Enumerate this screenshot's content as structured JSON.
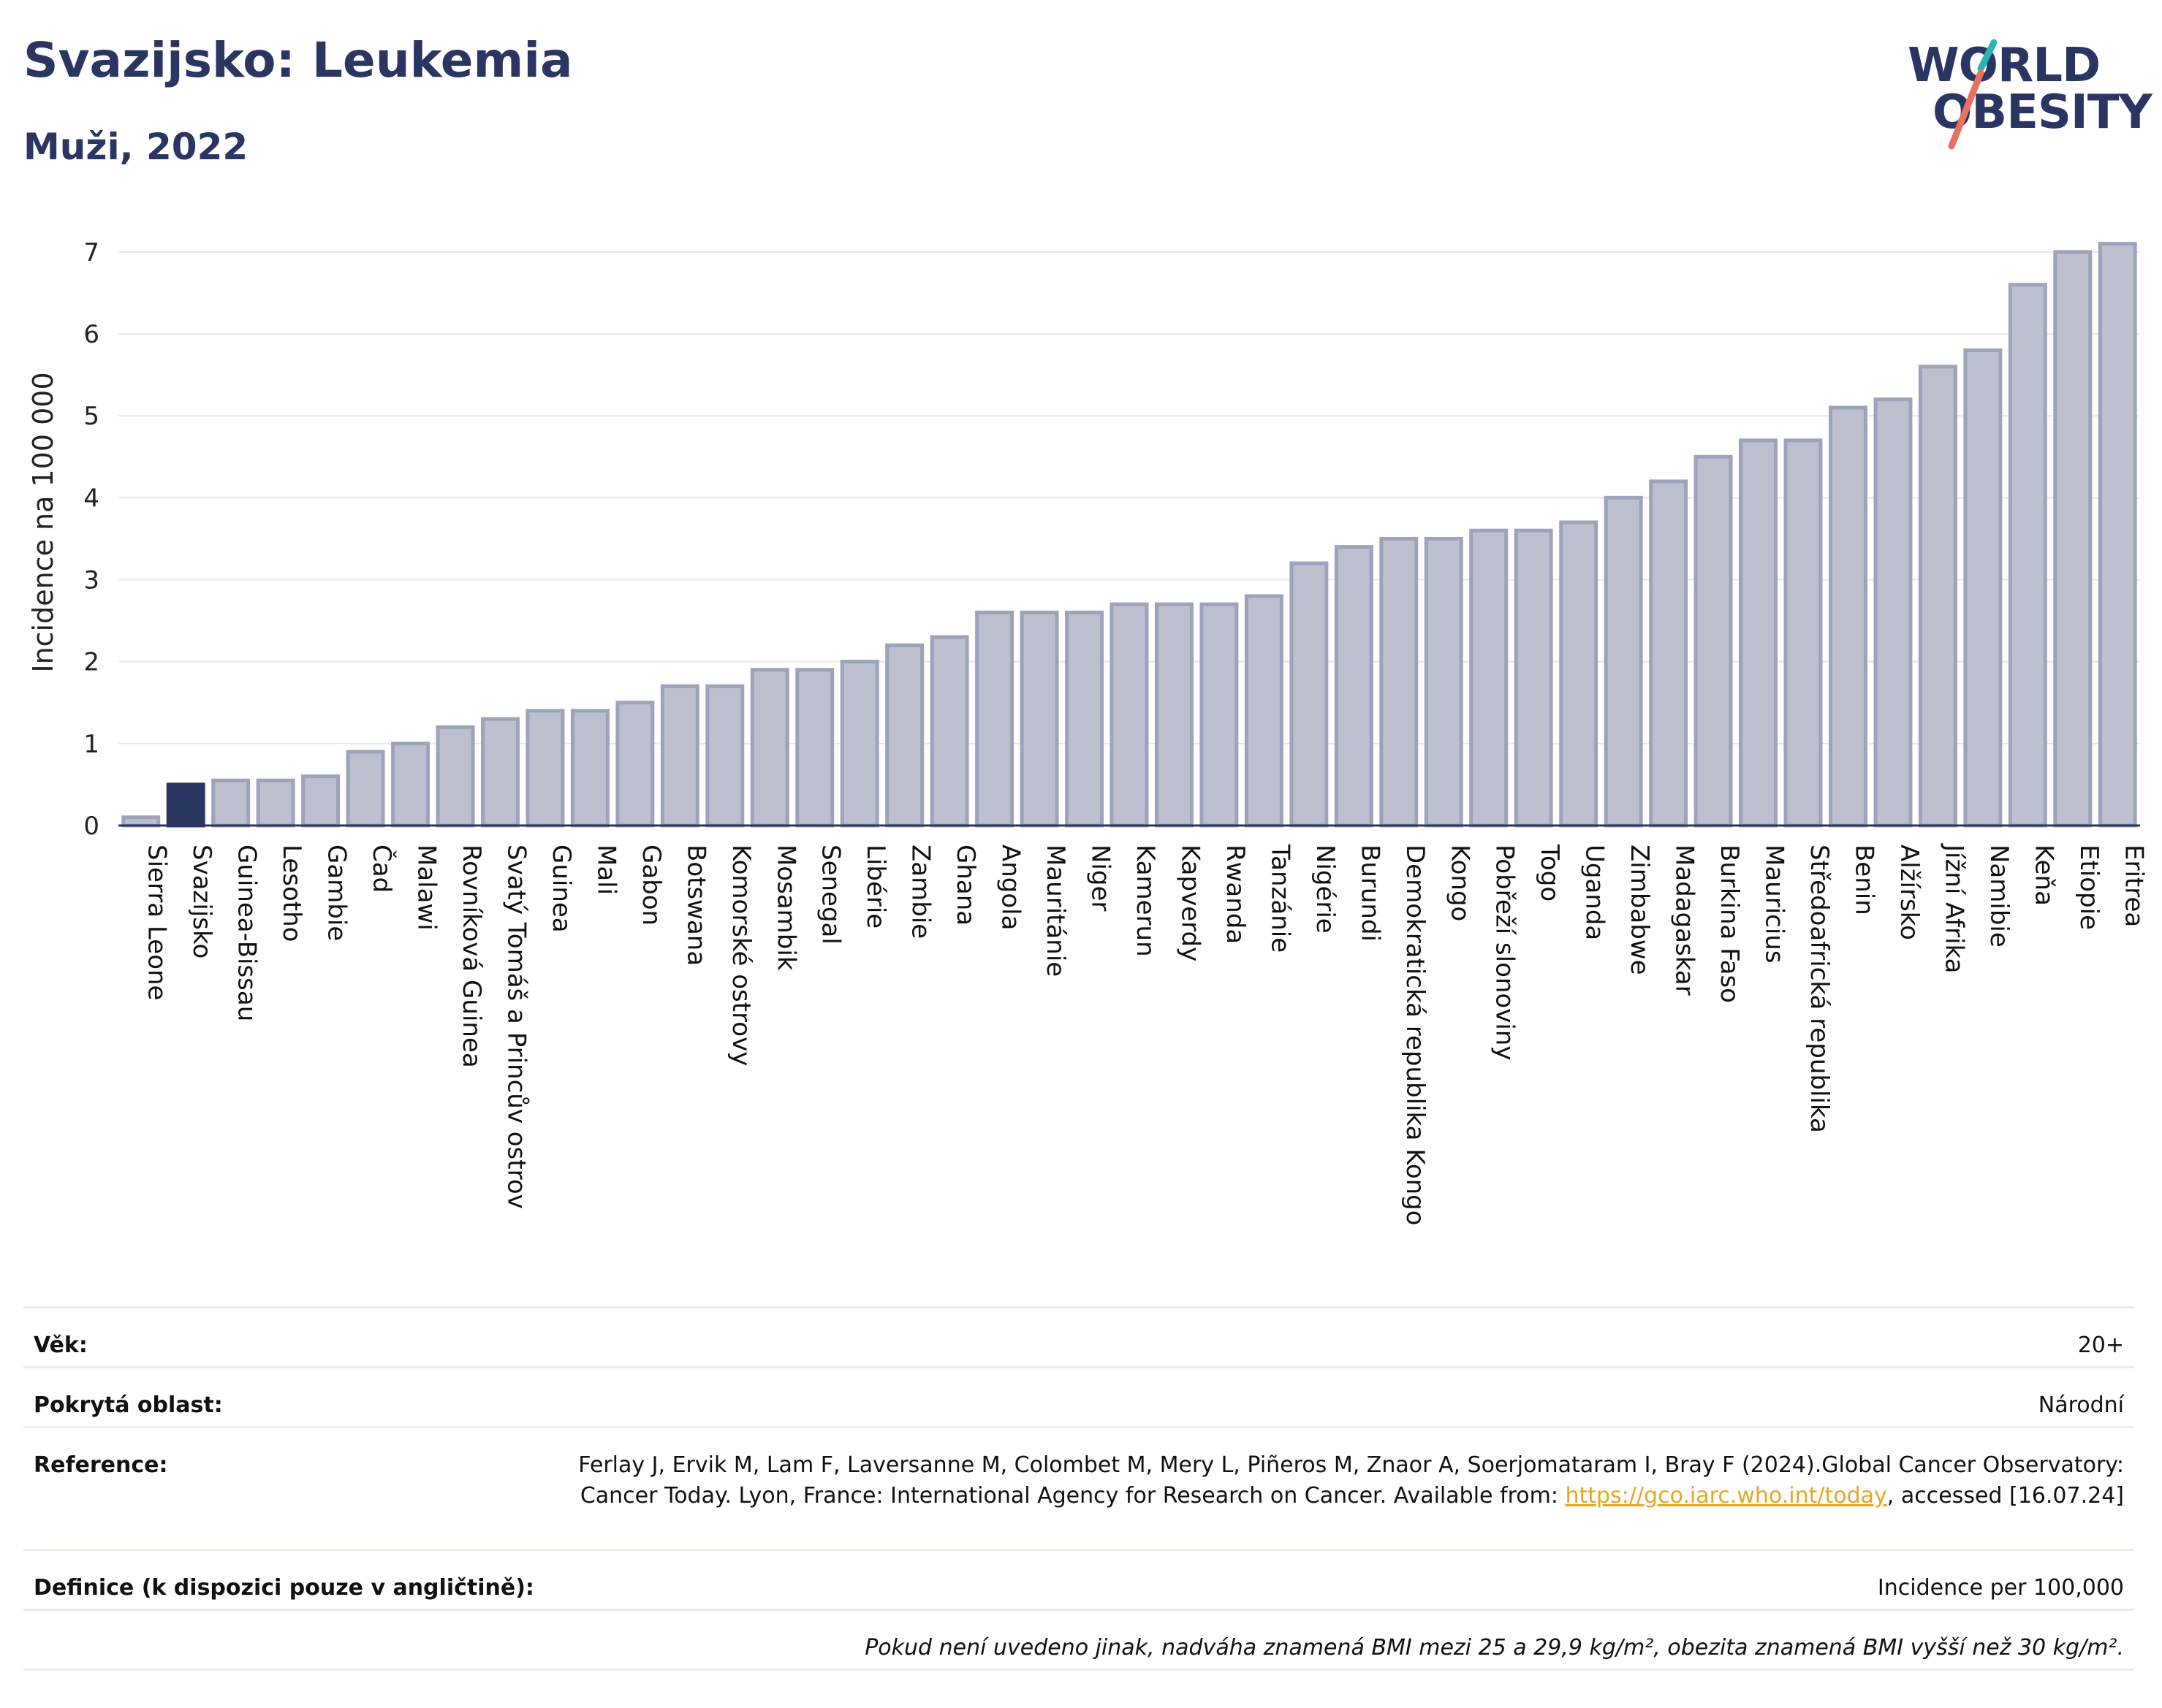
{
  "header": {
    "title": "Svazijsko: Leukemia",
    "subtitle": "Muži, 2022"
  },
  "logo": {
    "line1": "WORLD",
    "line2": "OBESITY",
    "accent_colors": [
      "#2bb5b0",
      "#e8715f"
    ]
  },
  "colors": {
    "highlight_bar": "#2b3562",
    "bar_fill": "#bcc0ce",
    "bar_border": "#9ca3ba",
    "gridline": "#e6e8ef",
    "text_dark": "#2b3562"
  },
  "chart_data": {
    "type": "bar",
    "ylabel": "Incidence na 100 000",
    "ylim": [
      0,
      7.4
    ],
    "yticks": [
      0,
      1,
      2,
      3,
      4,
      5,
      6,
      7
    ],
    "grid": true,
    "highlight": "Svazijsko",
    "categories": [
      "Sierra Leone",
      "Svazijsko",
      "Guinea-Bissau",
      "Lesotho",
      "Gambie",
      "Čad",
      "Malawi",
      "Rovníková Guinea",
      "Svatý Tomáš a Princův ostrov",
      "Guinea",
      "Mali",
      "Gabon",
      "Botswana",
      "Komorské ostrovy",
      "Mosambik",
      "Senegal",
      "Libérie",
      "Zambie",
      "Ghana",
      "Angola",
      "Mauritánie",
      "Niger",
      "Kamerun",
      "Kapverdy",
      "Rwanda",
      "Tanzánie",
      "Nigérie",
      "Burundi",
      "Demokratická republika Kongo",
      "Kongo",
      "Pobřeží slonoviny",
      "Togo",
      "Uganda",
      "Zimbabwe",
      "Madagaskar",
      "Burkina Faso",
      "Mauricius",
      "Středoafrická republika",
      "Benin",
      "Alžírsko",
      "Jížní Afrika",
      "Namibie",
      "Keňa",
      "Etiopie",
      "Eritrea"
    ],
    "values": [
      0.1,
      0.5,
      0.55,
      0.55,
      0.6,
      0.9,
      1.0,
      1.2,
      1.3,
      1.4,
      1.4,
      1.5,
      1.7,
      1.7,
      1.9,
      1.9,
      2.0,
      2.2,
      2.3,
      2.6,
      2.6,
      2.6,
      2.7,
      2.7,
      2.7,
      2.8,
      3.2,
      3.4,
      3.5,
      3.5,
      3.6,
      3.6,
      3.7,
      4.0,
      4.2,
      4.5,
      4.7,
      4.7,
      5.1,
      5.2,
      5.6,
      5.8,
      6.6,
      7.0,
      7.1
    ]
  },
  "info": {
    "age_label": "Věk:",
    "age_value": "20+",
    "area_label": "Pokrytá oblast:",
    "area_value": "Národní",
    "reference_label": "Reference:",
    "reference_text": "Ferlay J, Ervik M, Lam F, Laversanne M, Colombet M, Mery L, Piñeros M, Znaor A, Soerjomataram I, Bray F (2024).Global Cancer Observatory: Cancer Today. Lyon, France: International Agency for Research on Cancer. Available from:",
    "reference_link": "https://gco.iarc.who.int/today",
    "reference_suffix": ", accessed [16.07.24]",
    "definition_label": "Definice (k dispozici pouze v angličtině):",
    "definition_value": "Incidence per 100,000",
    "note": "Pokud není uvedeno jinak, nadváha znamená BMI mezi 25 a 29,9 kg/m², obezita znamená BMI vyšší než 30 kg/m²."
  }
}
